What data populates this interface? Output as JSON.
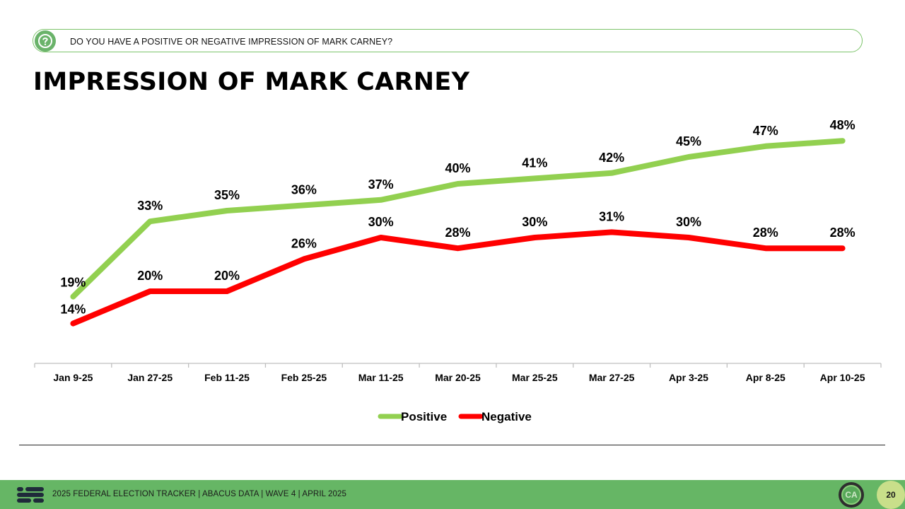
{
  "question": {
    "text": "DO YOU HAVE A POSITIVE OR NEGATIVE IMPRESSION OF MARK CARNEY?",
    "icon": "question-mark-icon"
  },
  "title": "IMPRESSION OF MARK CARNEY",
  "chart_data": {
    "type": "line",
    "title": "IMPRESSION OF MARK CARNEY",
    "categories": [
      "Jan 9-25",
      "Jan 27-25",
      "Feb 11-25",
      "Feb 25-25",
      "Mar 11-25",
      "Mar 20-25",
      "Mar 25-25",
      "Mar 27-25",
      "Apr 3-25",
      "Apr 8-25",
      "Apr 10-25"
    ],
    "series": [
      {
        "name": "Positive",
        "color": "#92d050",
        "values": [
          19,
          33,
          35,
          36,
          37,
          40,
          41,
          42,
          45,
          47,
          48
        ]
      },
      {
        "name": "Negative",
        "color": "#ff0000",
        "values": [
          14,
          20,
          20,
          26,
          30,
          28,
          30,
          31,
          30,
          28,
          28
        ]
      }
    ],
    "value_suffix": "%",
    "xlabel": "",
    "ylabel": "",
    "ylim": [
      10,
      50
    ],
    "grid": false,
    "legend": "bottom-center"
  },
  "footer": {
    "text": "2025 FEDERAL ELECTION TRACKER  |  ABACUS DATA  |  WAVE 4  |  APRIL 2025",
    "badge": "CA",
    "page_number": "20"
  },
  "colors": {
    "accent_green": "#66b665",
    "positive": "#92d050",
    "negative": "#ff0000"
  }
}
